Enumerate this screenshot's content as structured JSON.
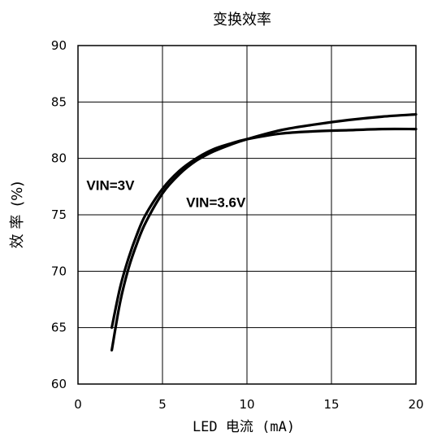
{
  "chart_data": {
    "type": "line",
    "title": "变换效率",
    "xlabel": "LED 电流 (mA)",
    "ylabel_main": "效 率",
    "ylabel_unit": "(%)",
    "xlim": [
      0,
      20
    ],
    "ylim": [
      60,
      90
    ],
    "xticks": [
      0,
      5,
      10,
      15,
      20
    ],
    "yticks": [
      60,
      65,
      70,
      75,
      80,
      85,
      90
    ],
    "grid": true,
    "line_color": "#000000",
    "series": [
      {
        "name": "VIN=3V",
        "x": [
          2.0,
          2.5,
          3.0,
          3.5,
          4.0,
          5.0,
          6.0,
          7.0,
          8.0,
          9.0,
          10.0,
          12.0,
          14.0,
          16.0,
          18.0,
          20.0
        ],
        "y": [
          65.0,
          68.6,
          71.2,
          73.3,
          75.0,
          77.3,
          78.9,
          80.0,
          80.8,
          81.3,
          81.7,
          82.2,
          82.4,
          82.5,
          82.6,
          82.6
        ]
      },
      {
        "name": "VIN=3.6V",
        "x": [
          2.0,
          2.5,
          3.0,
          3.5,
          4.0,
          5.0,
          6.0,
          7.0,
          8.0,
          9.0,
          10.0,
          12.0,
          14.0,
          16.0,
          18.0,
          20.0
        ],
        "y": [
          63.0,
          67.3,
          70.3,
          72.5,
          74.3,
          76.9,
          78.6,
          79.8,
          80.6,
          81.2,
          81.7,
          82.5,
          83.0,
          83.4,
          83.7,
          83.9
        ]
      }
    ],
    "annotations": [
      {
        "text": "VIN=3V",
        "x": 0.5,
        "y": 77.2
      },
      {
        "text": "VIN=3.6V",
        "x": 6.4,
        "y": 75.7
      }
    ]
  }
}
